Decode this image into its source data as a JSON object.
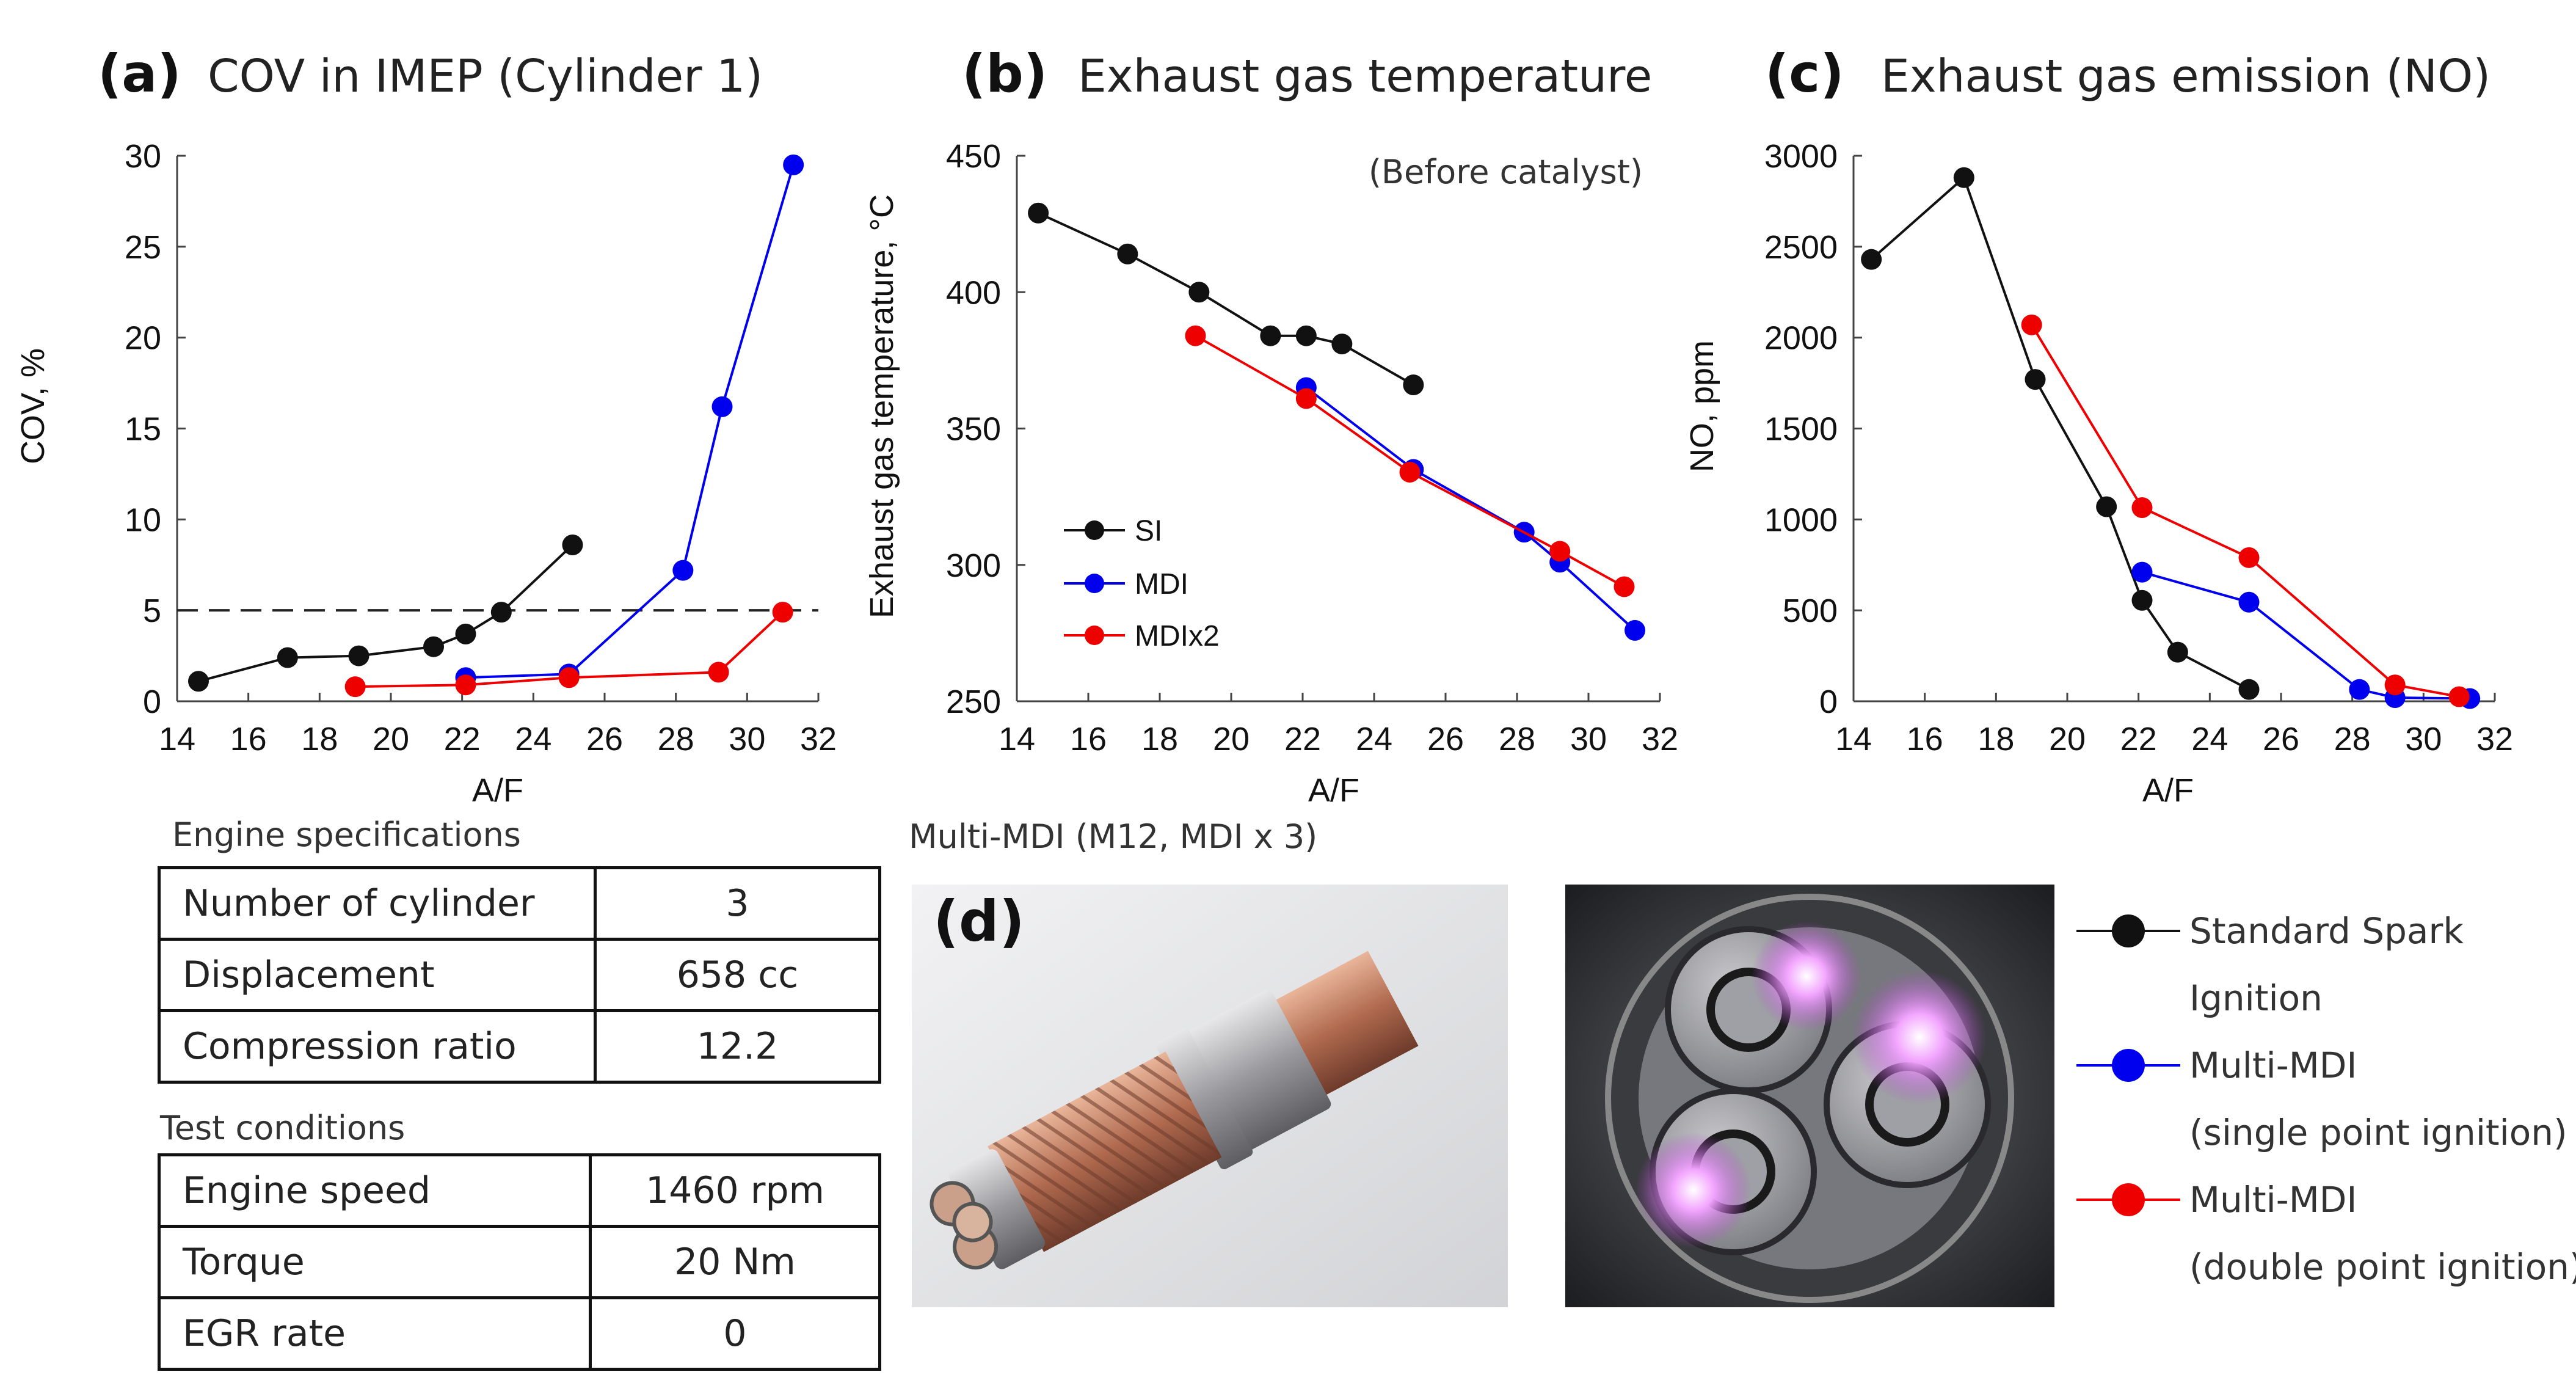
{
  "panels": [
    {
      "letter": "(a)",
      "title": "COV in IMEP (Cylinder 1)",
      "ylabel": "COV, %",
      "xlabel": "A/F",
      "reference_line_y": 5
    },
    {
      "letter": "(b)",
      "title": "Exhaust gas temperature",
      "ylabel": "Exhaust gas temperature, °C",
      "xlabel": "A/F",
      "note": "(Before catalyst)",
      "legend": [
        "SI",
        "MDI",
        "MDIx2"
      ]
    },
    {
      "letter": "(c)",
      "title": "Exhaust gas emission (NO)",
      "ylabel": "NO, ppm",
      "xlabel": "A/F"
    }
  ],
  "chart_data": [
    {
      "type": "line",
      "title": "COV in IMEP (Cylinder 1)",
      "xlabel": "A/F",
      "ylabel": "COV, %",
      "xlim": [
        14,
        32
      ],
      "ylim": [
        0,
        30
      ],
      "xticks": [
        14,
        16,
        18,
        20,
        22,
        24,
        26,
        28,
        30,
        32
      ],
      "yticks": [
        0,
        5,
        10,
        15,
        20,
        25,
        30
      ],
      "series": [
        {
          "name": "SI",
          "color": "#111111",
          "x": [
            14.6,
            17.1,
            19.1,
            21.2,
            22.1,
            23.1,
            25.1
          ],
          "y": [
            1.1,
            2.4,
            2.5,
            3.0,
            3.7,
            4.9,
            8.6
          ]
        },
        {
          "name": "MDI",
          "color": "#0000ee",
          "x": [
            22.1,
            25.0,
            28.2,
            29.3,
            31.3
          ],
          "y": [
            1.3,
            1.5,
            7.2,
            16.2,
            29.5
          ]
        },
        {
          "name": "MDIx2",
          "color": "#ee0000",
          "x": [
            19.0,
            22.1,
            25.0,
            29.2,
            31.0
          ],
          "y": [
            0.8,
            0.9,
            1.3,
            1.6,
            4.9
          ]
        }
      ]
    },
    {
      "type": "line",
      "title": "Exhaust gas temperature",
      "xlabel": "A/F",
      "ylabel": "Exhaust gas temperature, °C",
      "xlim": [
        14,
        32
      ],
      "ylim": [
        250,
        450
      ],
      "xticks": [
        14,
        16,
        18,
        20,
        22,
        24,
        26,
        28,
        30,
        32
      ],
      "yticks": [
        250,
        300,
        350,
        400,
        450
      ],
      "series": [
        {
          "name": "SI",
          "color": "#111111",
          "x": [
            14.6,
            17.1,
            19.1,
            21.1,
            22.1,
            23.1,
            25.1
          ],
          "y": [
            429,
            414,
            400,
            384,
            384,
            381,
            366
          ]
        },
        {
          "name": "MDI",
          "color": "#0000ee",
          "x": [
            22.1,
            25.1,
            28.2,
            29.2,
            31.3
          ],
          "y": [
            365,
            335,
            312,
            301,
            276
          ]
        },
        {
          "name": "MDIx2",
          "color": "#ee0000",
          "x": [
            19.0,
            22.1,
            25.0,
            29.2,
            31.0
          ],
          "y": [
            384,
            361,
            334,
            305,
            292
          ]
        }
      ]
    },
    {
      "type": "line",
      "title": "Exhaust gas emission (NO)",
      "xlabel": "A/F",
      "ylabel": "NO, ppm",
      "xlim": [
        14,
        32
      ],
      "ylim": [
        0,
        3000
      ],
      "xticks": [
        14,
        16,
        18,
        20,
        22,
        24,
        26,
        28,
        30,
        32
      ],
      "yticks": [
        0,
        500,
        1000,
        1500,
        2000,
        2500,
        3000
      ],
      "series": [
        {
          "name": "SI",
          "color": "#111111",
          "x": [
            14.5,
            17.1,
            19.1,
            21.1,
            22.1,
            23.1,
            25.1
          ],
          "y": [
            2430,
            2880,
            1770,
            1070,
            555,
            270,
            65
          ]
        },
        {
          "name": "MDI",
          "color": "#0000ee",
          "x": [
            22.1,
            25.1,
            28.2,
            29.2,
            31.3
          ],
          "y": [
            710,
            545,
            65,
            20,
            15
          ]
        },
        {
          "name": "MDIx2",
          "color": "#ee0000",
          "x": [
            19.0,
            22.1,
            25.1,
            29.2,
            31.0
          ],
          "y": [
            2070,
            1065,
            790,
            90,
            25
          ]
        }
      ]
    }
  ],
  "engine_specs": {
    "title": "Engine specifications",
    "rows": [
      {
        "label": "Number of cylinder",
        "value": "3"
      },
      {
        "label": "Displacement",
        "value": "658 cc"
      },
      {
        "label": "Compression ratio",
        "value": "12.2"
      }
    ]
  },
  "test_conditions": {
    "title": "Test conditions",
    "rows": [
      {
        "label": "Engine speed",
        "value": "1460 rpm"
      },
      {
        "label": "Torque",
        "value": "20 Nm"
      },
      {
        "label": "EGR rate",
        "value": "0"
      }
    ]
  },
  "photo_section": {
    "caption": "Multi-MDI (M12, MDI x 3)",
    "letter": "(d)"
  },
  "main_legend": [
    {
      "line1": "Standard Spark",
      "line2": "Ignition",
      "color": "#111111"
    },
    {
      "line1": "Multi-MDI",
      "line2": "(single point ignition)",
      "color": "#0000ee"
    },
    {
      "line1": "Multi-MDI",
      "line2": "(double point ignition)",
      "color": "#ee0000"
    }
  ]
}
